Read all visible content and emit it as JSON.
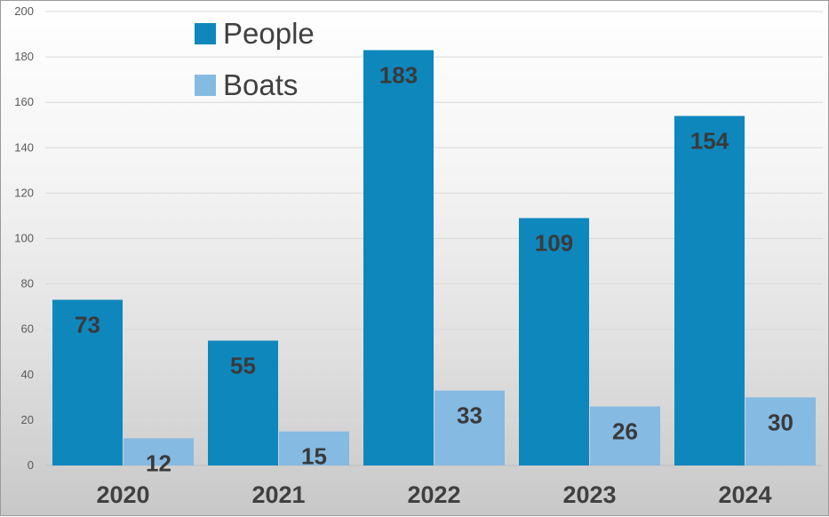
{
  "chart_data": {
    "type": "bar",
    "categories": [
      "2020",
      "2021",
      "2022",
      "2023",
      "2024"
    ],
    "series": [
      {
        "name": "People",
        "values": [
          73,
          55,
          183,
          109,
          154
        ],
        "color": "#0e87bd"
      },
      {
        "name": "Boats",
        "values": [
          12,
          15,
          33,
          26,
          30
        ],
        "color": "#85bae2"
      }
    ],
    "yticks": [
      "0",
      "20",
      "40",
      "60",
      "80",
      "100",
      "120",
      "140",
      "160",
      "180",
      "200"
    ],
    "ylim": [
      0,
      200
    ],
    "title": "",
    "xlabel": "",
    "ylabel": "",
    "grid": true,
    "legend_position": "top-left",
    "data_labels": true
  }
}
